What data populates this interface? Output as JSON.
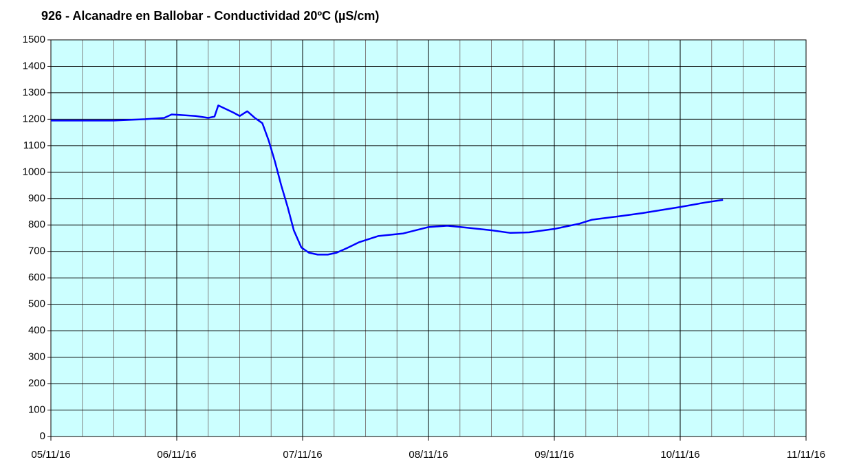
{
  "chart_data": {
    "type": "line",
    "title": "926 - Alcanadre en Ballobar - Conductividad 20ºC (µS/cm)",
    "x": [
      0,
      0.5,
      0.75,
      0.9,
      0.96,
      1.15,
      1.25,
      1.3,
      1.33,
      1.45,
      1.5,
      1.56,
      1.62,
      1.68,
      1.73,
      1.78,
      1.83,
      1.88,
      1.93,
      1.99,
      2.05,
      2.12,
      2.2,
      2.27,
      2.35,
      2.45,
      2.6,
      2.8,
      3.0,
      3.15,
      3.3,
      3.5,
      3.65,
      3.8,
      4.0,
      4.2,
      4.3,
      4.5,
      4.7,
      5.0,
      5.2,
      5.34
    ],
    "values": [
      1195,
      1195,
      1200,
      1205,
      1218,
      1212,
      1205,
      1210,
      1252,
      1225,
      1212,
      1230,
      1205,
      1185,
      1120,
      1040,
      950,
      870,
      780,
      715,
      695,
      688,
      688,
      695,
      712,
      735,
      758,
      768,
      792,
      797,
      790,
      780,
      770,
      772,
      785,
      805,
      820,
      832,
      845,
      868,
      885,
      895
    ],
    "color": "#0000ff",
    "background": "#ccffff",
    "xlim": [
      0,
      6
    ],
    "xticks": [
      {
        "value": 0,
        "label": "05/11/16"
      },
      {
        "value": 1,
        "label": "06/11/16"
      },
      {
        "value": 2,
        "label": "07/11/16"
      },
      {
        "value": 3,
        "label": "08/11/16"
      },
      {
        "value": 4,
        "label": "09/11/16"
      },
      {
        "value": 5,
        "label": "10/11/16"
      },
      {
        "value": 6,
        "label": "11/11/16"
      }
    ],
    "xminor": [
      0.25,
      0.5,
      0.75,
      1.25,
      1.5,
      1.75,
      2.25,
      2.5,
      2.75,
      3.25,
      3.5,
      3.75,
      4.25,
      4.5,
      4.75,
      5.25,
      5.5,
      5.75
    ],
    "ylim": [
      0,
      1500
    ],
    "yticks": [
      0,
      100,
      200,
      300,
      400,
      500,
      600,
      700,
      800,
      900,
      1000,
      1100,
      1200,
      1300,
      1400,
      1500
    ],
    "grid": true
  }
}
